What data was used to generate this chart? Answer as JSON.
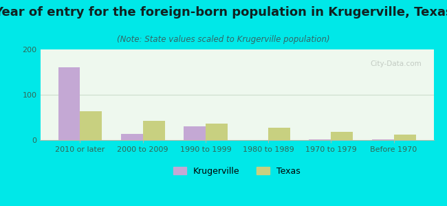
{
  "title": "Year of entry for the foreign-born population in Krugerville, Texas",
  "subtitle": "(Note: State values scaled to Krugerville population)",
  "categories": [
    "2010 or later",
    "2000 to 2009",
    "1990 to 1999",
    "1980 to 1989",
    "1970 to 1979",
    "Before 1970"
  ],
  "krugerville_values": [
    160,
    13,
    30,
    0,
    2,
    2
  ],
  "texas_values": [
    63,
    42,
    37,
    28,
    18,
    12
  ],
  "krugerville_color": "#c4a8d4",
  "texas_color": "#c8d080",
  "background_outer": "#00e8e8",
  "background_plot": "#eef8ee",
  "ylim": [
    0,
    200
  ],
  "yticks": [
    0,
    100,
    200
  ],
  "bar_width": 0.35,
  "title_fontsize": 13,
  "subtitle_fontsize": 8.5,
  "tick_fontsize": 8,
  "legend_fontsize": 9,
  "grid_color": "#ddeecc",
  "axis_label_color": "#336655",
  "title_color": "#112222",
  "subtitle_color": "#336666"
}
